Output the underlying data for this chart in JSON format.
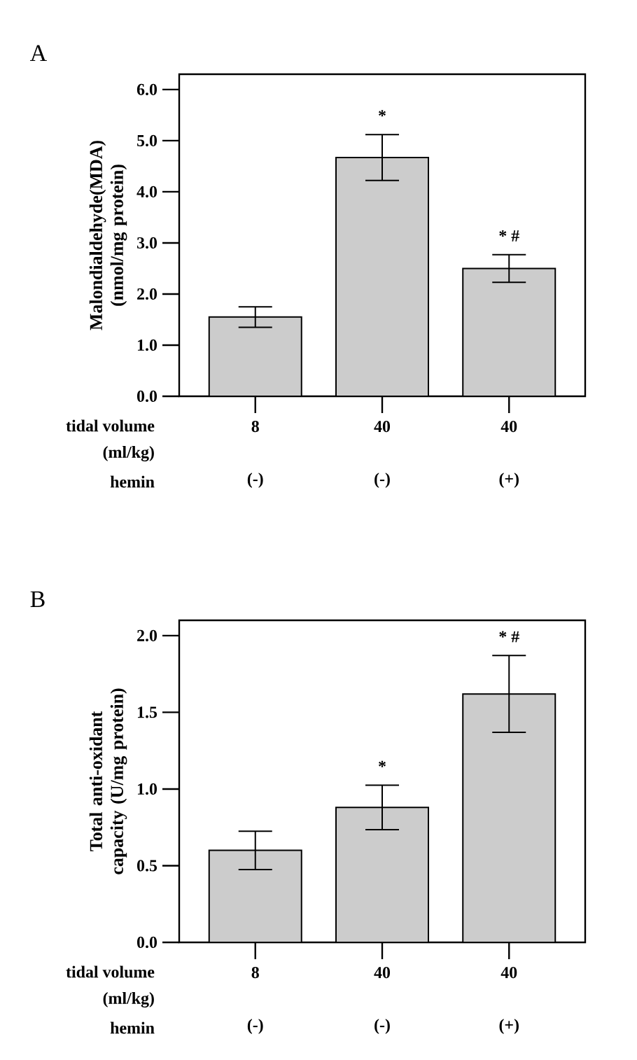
{
  "chart_data": [
    {
      "type": "bar",
      "title": "A",
      "ylabel": "Malondialdehyde(MDA) (nmol/mg protein)",
      "categories": [
        "8",
        "40",
        "40"
      ],
      "values": [
        1.55,
        4.67,
        2.5
      ],
      "errors": [
        0.2,
        0.45,
        0.27
      ],
      "color": "#cccccc",
      "ylim": [
        0,
        6.3
      ],
      "yticks": [
        {
          "value": 0,
          "label": "0.0"
        },
        {
          "value": 1,
          "label": "1.0"
        },
        {
          "value": 2,
          "label": "2.0"
        },
        {
          "value": 3,
          "label": "3.0"
        },
        {
          "value": 4,
          "label": "4.0"
        },
        {
          "value": 5,
          "label": "5.0"
        },
        {
          "value": 6,
          "label": "6.0"
        }
      ],
      "annotations": [
        "tidal volume",
        "(ml/kg)",
        "hemin",
        "(-)",
        "(-)",
        "(+)",
        "*",
        "* #"
      ],
      "grid": false
    },
    {
      "type": "bar",
      "title": "B",
      "ylabel": "Total anti-oxidant capacity (U/mg protein)",
      "categories": [
        "8",
        "40",
        "40"
      ],
      "values": [
        0.6,
        0.88,
        1.62
      ],
      "errors": [
        0.125,
        0.145,
        0.25
      ],
      "color": "#cccccc",
      "ylim": [
        0,
        2.1
      ],
      "yticks": [
        {
          "value": 0,
          "label": "0.0"
        },
        {
          "value": 0.5,
          "label": "0.5"
        },
        {
          "value": 1,
          "label": "1.0"
        },
        {
          "value": 1.5,
          "label": "1.5"
        },
        {
          "value": 2,
          "label": "2.0"
        }
      ],
      "annotations": [
        "tidal volume",
        "(ml/kg)",
        "hemin",
        "(-)",
        "(-)",
        "(+)",
        "*",
        "* #"
      ],
      "grid": false
    }
  ]
}
